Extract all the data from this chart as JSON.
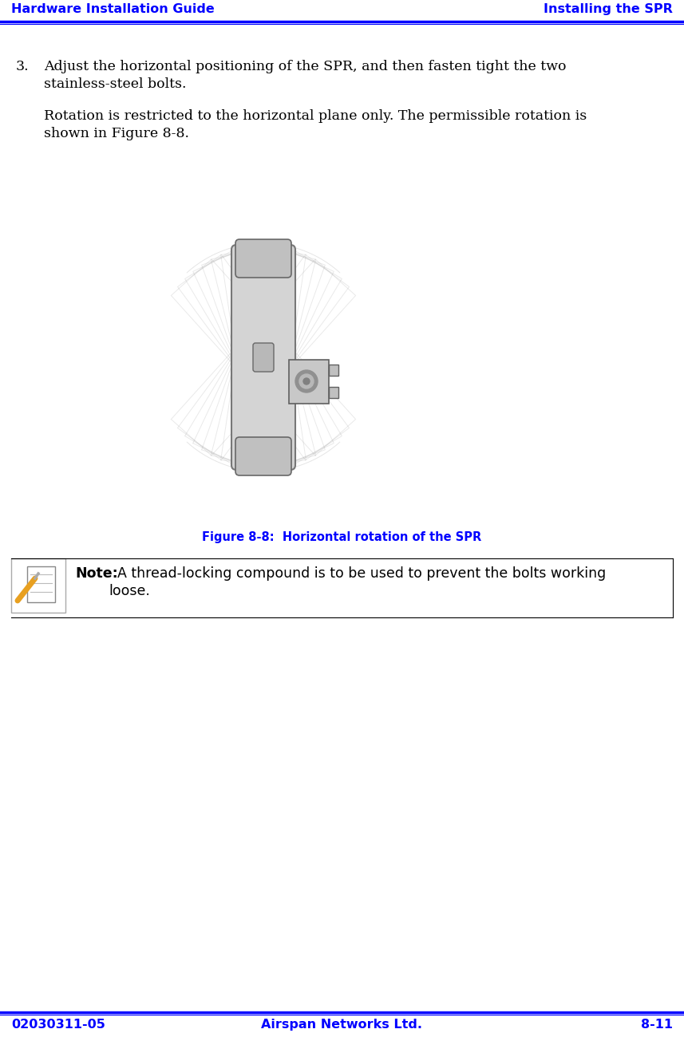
{
  "header_left": "Hardware Installation Guide",
  "header_right": "Installing the SPR",
  "footer_left": "02030311-05",
  "footer_center": "Airspan Networks Ltd.",
  "footer_right": "8-11",
  "header_color": "#0000FF",
  "body_color": "#000000",
  "figure_caption": "Figure 8-8:  Horizontal rotation of the SPR",
  "figure_caption_color": "#0000FF",
  "step_number": "3.",
  "step_line1": "Adjust the horizontal positioning of the SPR, and then fasten tight the two",
  "step_line2": "stainless-steel bolts.",
  "para2_line1": "Rotation is restricted to the horizontal plane only. The permissible rotation is",
  "para2_line2": "shown in Figure 8-8.",
  "note_bold": "Note:",
  "note_line1": "  A thread-locking compound is to be used to prevent the bolts working",
  "note_line2": "loose.",
  "bg_color": "#ffffff",
  "line_color": "#0000FF",
  "body_font_size": 12.5,
  "header_font_size": 11.5,
  "caption_font_size": 10.5
}
